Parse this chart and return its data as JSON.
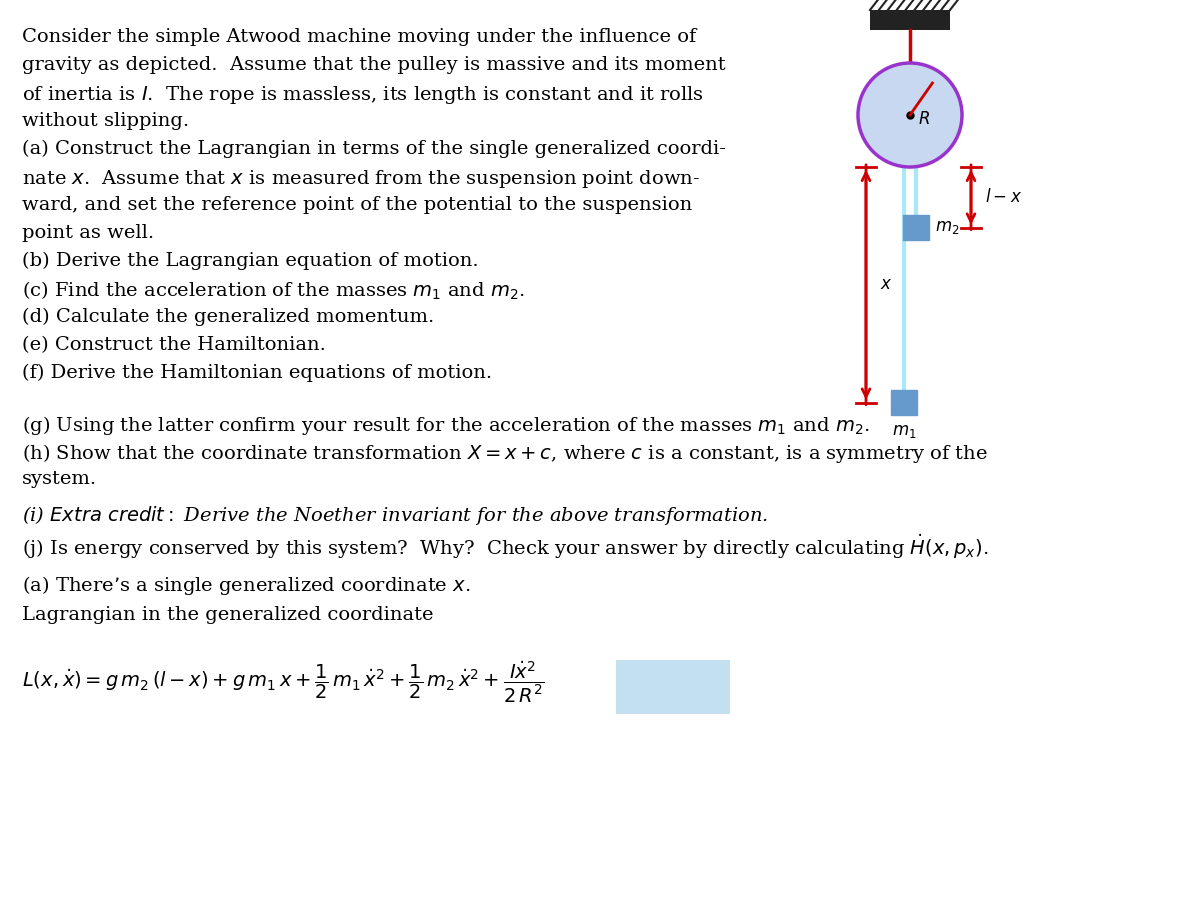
{
  "bg_color": "#ffffff",
  "text_color": "#000000",
  "arrow_color": "#cc0000",
  "rope_color": "#a8e8f8",
  "pulley_face_color": "#c8d8f0",
  "pulley_edge_color": "#9933cc",
  "mass_color": "#6699cc",
  "hatch_color": "#222222",
  "spoke_color": "#cc0000",
  "font_size": 14,
  "fig_width": 12.0,
  "fig_height": 8.97,
  "lines_left": [
    "Consider the simple Atwood machine moving under the influence of",
    "gravity as depicted.  Assume that the pulley is massive and its moment",
    "of inertia is $I$.  The rope is massless, its length is constant and it rolls",
    "without slipping.",
    "(a) Construct the Lagrangian in terms of the single generalized coordi-",
    "nate $x$.  Assume that $x$ is measured from the suspension point down-",
    "ward, and set the reference point of the potential to the suspension",
    "point as well.",
    "(b) Derive the Lagrangian equation of motion.",
    "(c) Find the acceleration of the masses $m_1$ and $m_2$.",
    "(d) Calculate the generalized momentum.",
    "(e) Construct the Hamiltonian.",
    "(f) Derive the Hamiltonian equations of motion."
  ],
  "line_g": "(g) Using the latter confirm your result for the acceleration of the masses $m_1$ and $m_2$.",
  "line_h1": "(h) Show that the coordinate transformation $X = x + c$, where $c$ is a constant, is a symmetry of the",
  "line_h2": "system.",
  "line_i": "(i) $\\mathit{Extra\\ credit:}$ Derive the Noether invariant for the above transformation.",
  "line_j": "(j) Is energy conserved by this system?  Why?  Check your answer by directly calculating $\\dot{H}(x, p_x)$.",
  "ans_a1": "(a) There’s a single generalized coordinate $x$.",
  "ans_a2": "Lagrangian in the generalized coordinate"
}
